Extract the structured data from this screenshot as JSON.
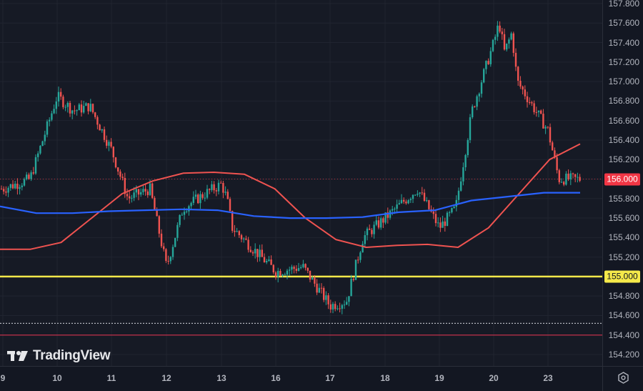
{
  "chart_data": {
    "type": "candlestick",
    "title": "",
    "xlabel": "",
    "ylabel": "",
    "ylim": [
      154.1,
      157.85
    ],
    "grid": true,
    "x_ticks": [
      "9",
      "10",
      "11",
      "12",
      "13",
      "16",
      "17",
      "18",
      "19",
      "20",
      "23"
    ],
    "y_ticks": [
      "157.800",
      "157.600",
      "157.400",
      "157.200",
      "157.000",
      "156.800",
      "156.600",
      "156.400",
      "156.200",
      "156.000",
      "155.800",
      "155.600",
      "155.400",
      "155.200",
      "155.000",
      "154.800",
      "154.600",
      "154.400",
      "154.200"
    ],
    "last_price": 156.0,
    "horizontal_levels": [
      {
        "name": "support-level",
        "value": 155.0,
        "color": "#f5e94a",
        "style": "solid"
      },
      {
        "name": "dotted-level",
        "value": 154.52,
        "color": "#b2b5be",
        "style": "dotted"
      },
      {
        "name": "low-level",
        "value": 154.4,
        "color": "#c2314a",
        "style": "solid"
      }
    ],
    "series": [
      {
        "name": "price-close-approx",
        "color_up": "#26a69a",
        "color_down": "#ef5350",
        "x": [
          "9",
          "9.5",
          "10",
          "10.3",
          "10.6",
          "11",
          "11.3",
          "11.7",
          "12",
          "12.3",
          "12.7",
          "13",
          "13.3",
          "13.6",
          "16",
          "16.5",
          "17",
          "17.3",
          "17.6",
          "18",
          "18.3",
          "18.6",
          "19",
          "19.3",
          "19.6",
          "20",
          "20.3",
          "20.6",
          "21",
          "21.3",
          "23",
          "23.2",
          "23.5"
        ],
        "values": [
          155.9,
          156.0,
          156.85,
          156.7,
          156.75,
          156.3,
          155.8,
          155.9,
          155.1,
          155.7,
          155.85,
          155.95,
          155.8,
          155.5,
          155.05,
          155.1,
          154.7,
          154.75,
          155.4,
          155.6,
          155.75,
          155.9,
          155.5,
          155.7,
          156.7,
          157.4,
          157.6,
          157.3,
          157.5,
          157.0,
          156.5,
          156.0,
          156.0
        ]
      },
      {
        "name": "ma-red",
        "color": "#ef5350",
        "values": [
          155.28,
          155.28,
          155.35,
          155.6,
          155.85,
          155.98,
          156.06,
          156.07,
          156.05,
          155.9,
          155.6,
          155.38,
          155.3,
          155.32,
          155.33,
          155.3,
          155.5,
          155.85,
          156.2,
          156.36
        ]
      },
      {
        "name": "ma-blue",
        "color": "#2962ff",
        "values": [
          155.72,
          155.65,
          155.65,
          155.67,
          155.68,
          155.69,
          155.68,
          155.62,
          155.6,
          155.6,
          155.61,
          155.66,
          155.68,
          155.78,
          155.82,
          155.86,
          155.86
        ]
      }
    ]
  },
  "price_axis": {
    "labels": [
      "157.800",
      "157.600",
      "157.400",
      "157.200",
      "157.000",
      "156.800",
      "156.600",
      "156.400",
      "156.200",
      "156.000",
      "155.800",
      "155.600",
      "155.400",
      "155.200",
      "155.000",
      "154.800",
      "154.600",
      "154.400",
      "154.200"
    ],
    "last_price_tag": "156.000",
    "level_tag": "155.000",
    "last_price_color": "#f23645",
    "level_color": "#f5e94a"
  },
  "time_axis": {
    "labels": [
      "9",
      "10",
      "11",
      "12",
      "13",
      "16",
      "17",
      "18",
      "19",
      "20",
      "23"
    ]
  },
  "branding": {
    "logo_text": "TradingView"
  },
  "settings_icon": "gear-icon"
}
